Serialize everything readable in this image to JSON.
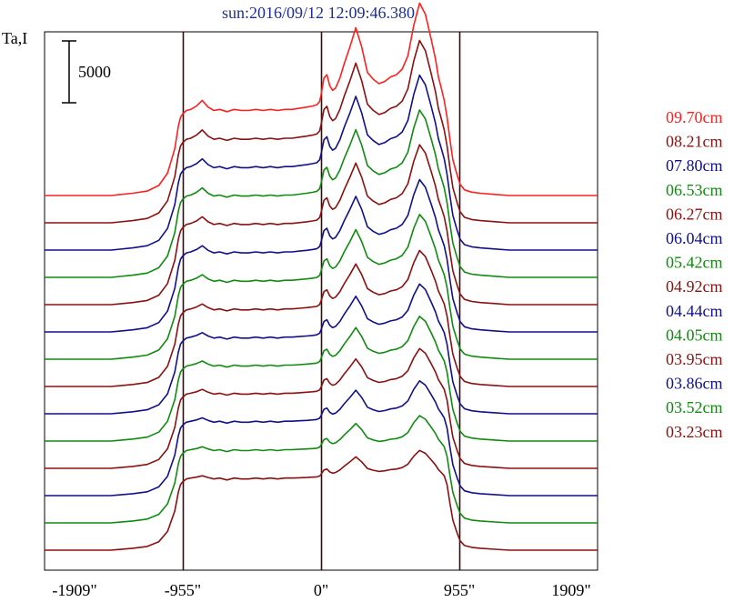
{
  "chart_data": {
    "type": "line",
    "title": "sun:2016/09/12 12:09:46.380",
    "title_color": "#1f2f8f",
    "ylabel": "Ta,I",
    "scale_bar_label": "5000",
    "scale_bar_value": 5000,
    "x_ticks": [
      {
        "value": -1909,
        "label": "-1909\""
      },
      {
        "value": -955,
        "label": "-955\""
      },
      {
        "value": 0,
        "label": "0\""
      },
      {
        "value": 955,
        "label": "955\""
      },
      {
        "value": 1909,
        "label": "1909\""
      }
    ],
    "xlim": [
      -1909,
      1909
    ],
    "vertical_lines": [
      -955,
      0,
      955
    ],
    "x": [
      -1909,
      -1750,
      -1600,
      -1450,
      -1300,
      -1200,
      -1120,
      -1060,
      -1010,
      -985,
      -970,
      -955,
      -930,
      -900,
      -860,
      -820,
      -780,
      -740,
      -700,
      -650,
      -600,
      -550,
      -500,
      -450,
      -400,
      -350,
      -300,
      -250,
      -200,
      -150,
      -100,
      -60,
      -30,
      -10,
      0,
      20,
      40,
      60,
      80,
      100,
      130,
      160,
      200,
      240,
      280,
      320,
      360,
      400,
      440,
      480,
      520,
      560,
      600,
      640,
      680,
      720,
      760,
      790,
      810,
      830,
      850,
      870,
      890,
      910,
      940,
      960,
      990,
      1040,
      1100,
      1200,
      1300,
      1450,
      1600,
      1750,
      1909
    ],
    "shape_raw": [
      0,
      0,
      0,
      0,
      0.02,
      0.04,
      0.09,
      0.2,
      0.42,
      0.62,
      0.7,
      0.73,
      0.76,
      0.77,
      0.8,
      0.85,
      0.79,
      0.76,
      0.77,
      0.75,
      0.77,
      0.76,
      0.76,
      0.77,
      0.76,
      0.77,
      0.76,
      0.77,
      0.77,
      0.78,
      0.79,
      0.8,
      0.81,
      0.84,
      0.9,
      1.05,
      1.08,
      0.98,
      0.94,
      0.96,
      1.05,
      1.18,
      1.33,
      1.5,
      1.33,
      1.1,
      1.04,
      1.0,
      1.02,
      1.06,
      1.08,
      1.13,
      1.25,
      1.52,
      1.72,
      1.62,
      1.4,
      1.22,
      1.06,
      0.96,
      0.85,
      0.7,
      0.5,
      0.32,
      0.18,
      0.1,
      0.05,
      0.03,
      0.02,
      0.01,
      0,
      0,
      0,
      0,
      0
    ],
    "row_spacing_intensity": 30,
    "series": [
      {
        "name": "09.70cm",
        "color": "#ff2020",
        "feature_scale": 1.0
      },
      {
        "name": "08.21cm",
        "color": "#8b1010",
        "feature_scale": 0.92
      },
      {
        "name": "07.80cm",
        "color": "#10108b",
        "feature_scale": 0.86
      },
      {
        "name": "06.53cm",
        "color": "#108b10",
        "feature_scale": 0.8
      },
      {
        "name": "06.27cm",
        "color": "#8b1010",
        "feature_scale": 0.74
      },
      {
        "name": "06.04cm",
        "color": "#10108b",
        "feature_scale": 0.68
      },
      {
        "name": "05.42cm",
        "color": "#108b10",
        "feature_scale": 0.62
      },
      {
        "name": "04.92cm",
        "color": "#8b1010",
        "feature_scale": 0.55
      },
      {
        "name": "04.44cm",
        "color": "#10108b",
        "feature_scale": 0.5
      },
      {
        "name": "04.05cm",
        "color": "#108b10",
        "feature_scale": 0.46
      },
      {
        "name": "03.95cm",
        "color": "#8b1010",
        "feature_scale": 0.42
      },
      {
        "name": "03.86cm",
        "color": "#10108b",
        "feature_scale": 0.38
      },
      {
        "name": "03.52cm",
        "color": "#108b10",
        "feature_scale": 0.32
      },
      {
        "name": "03.23cm",
        "color": "#8b1010",
        "feature_scale": 0.26
      }
    ]
  }
}
